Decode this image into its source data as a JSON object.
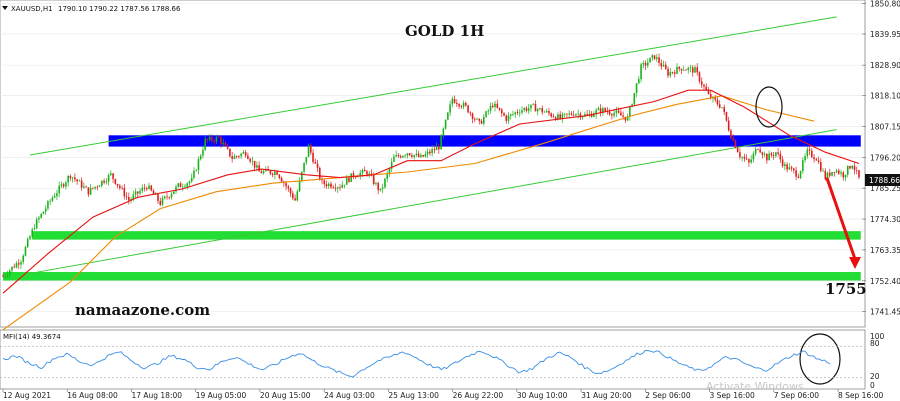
{
  "window": {
    "symbol_label": "XAUUSD,H1",
    "ohlc_label": "1790.10 1790.22 1787.56 1788.66",
    "menu_icon": "triangle-down-icon"
  },
  "annotations": {
    "title": "GOLD 1H",
    "brand": "namaazone.com",
    "target": "1755",
    "price_tag": "1788.66"
  },
  "indicator": {
    "label": "MFI(14) 49.3674",
    "levels": [
      "100",
      "80",
      "20",
      "0"
    ]
  },
  "watermark": "Activate Windows",
  "colors": {
    "up_candle": "#19b219",
    "down_candle": "#e11c1c",
    "ma_fast": "#e81010",
    "ma_slow": "#f08a00",
    "channel": "#33cc33",
    "resistance_zone": "#0000ff",
    "support_zone": "#22dd33",
    "mfi_line": "#3a8ee6",
    "arrow": "#e81010"
  },
  "chart_data": {
    "type": "candlestick",
    "title": "GOLD 1H",
    "ylim": [
      1736,
      1852
    ],
    "y_ticks": [
      "1850.80",
      "1839.95",
      "1828.90",
      "1818.10",
      "1807.15",
      "1796.20",
      "1785.25",
      "1774.30",
      "1763.35",
      "1752.40",
      "1741.45"
    ],
    "x_ticks": [
      "12 Aug 2021",
      "16 Aug 08:00",
      "17 Aug 18:00",
      "19 Aug 05:00",
      "20 Aug 15:00",
      "24 Aug 03:00",
      "25 Aug 13:00",
      "26 Aug 22:00",
      "30 Aug 10:00",
      "31 Aug 20:00",
      "2 Sep 06:00",
      "3 Sep 16:00",
      "7 Sep 06:00",
      "8 Sep 16:00"
    ],
    "close_path": [
      [
        0,
        1754
      ],
      [
        8,
        1760
      ],
      [
        14,
        1772
      ],
      [
        22,
        1782
      ],
      [
        30,
        1790
      ],
      [
        38,
        1784
      ],
      [
        48,
        1790
      ],
      [
        56,
        1781
      ],
      [
        64,
        1786
      ],
      [
        70,
        1780
      ],
      [
        78,
        1786
      ],
      [
        84,
        1788
      ],
      [
        90,
        1802
      ],
      [
        96,
        1803
      ],
      [
        102,
        1796
      ],
      [
        108,
        1798
      ],
      [
        114,
        1791
      ],
      [
        122,
        1791
      ],
      [
        130,
        1781
      ],
      [
        136,
        1800
      ],
      [
        142,
        1787
      ],
      [
        150,
        1786
      ],
      [
        156,
        1790
      ],
      [
        162,
        1791
      ],
      [
        168,
        1784
      ],
      [
        174,
        1796
      ],
      [
        180,
        1798
      ],
      [
        186,
        1796
      ],
      [
        194,
        1800
      ],
      [
        200,
        1817
      ],
      [
        206,
        1814
      ],
      [
        212,
        1808
      ],
      [
        218,
        1815
      ],
      [
        224,
        1810
      ],
      [
        230,
        1813
      ],
      [
        236,
        1814
      ],
      [
        242,
        1812
      ],
      [
        248,
        1810
      ],
      [
        254,
        1812
      ],
      [
        260,
        1811
      ],
      [
        266,
        1813
      ],
      [
        272,
        1812
      ],
      [
        278,
        1810
      ],
      [
        284,
        1828
      ],
      [
        290,
        1832
      ],
      [
        296,
        1826
      ],
      [
        302,
        1828
      ],
      [
        308,
        1827
      ],
      [
        314,
        1818
      ],
      [
        320,
        1814
      ],
      [
        324,
        1804
      ],
      [
        328,
        1797
      ],
      [
        332,
        1794
      ],
      [
        336,
        1800
      ],
      [
        340,
        1796
      ],
      [
        344,
        1798
      ],
      [
        348,
        1793
      ],
      [
        354,
        1790
      ],
      [
        358,
        1798
      ],
      [
        362,
        1796
      ],
      [
        366,
        1789
      ],
      [
        370,
        1792
      ],
      [
        374,
        1790
      ],
      [
        378,
        1794
      ],
      [
        381,
        1788.66
      ]
    ],
    "ma_fast_path": [
      [
        0,
        1748
      ],
      [
        20,
        1762
      ],
      [
        40,
        1775
      ],
      [
        60,
        1782
      ],
      [
        80,
        1785
      ],
      [
        100,
        1790
      ],
      [
        115,
        1792
      ],
      [
        135,
        1790
      ],
      [
        150,
        1789
      ],
      [
        165,
        1790
      ],
      [
        180,
        1795
      ],
      [
        195,
        1795
      ],
      [
        210,
        1801
      ],
      [
        230,
        1808
      ],
      [
        260,
        1811
      ],
      [
        290,
        1816
      ],
      [
        305,
        1820
      ],
      [
        315,
        1820
      ],
      [
        330,
        1814
      ],
      [
        350,
        1804
      ],
      [
        366,
        1798
      ],
      [
        381,
        1794
      ]
    ],
    "ma_slow_path": [
      [
        0,
        1735
      ],
      [
        30,
        1752
      ],
      [
        50,
        1768
      ],
      [
        70,
        1778
      ],
      [
        95,
        1784
      ],
      [
        120,
        1787
      ],
      [
        150,
        1789
      ],
      [
        180,
        1791
      ],
      [
        210,
        1794
      ],
      [
        240,
        1801
      ],
      [
        260,
        1806
      ],
      [
        280,
        1811
      ],
      [
        300,
        1815
      ],
      [
        320,
        1818
      ],
      [
        340,
        1813
      ],
      [
        361,
        1809
      ]
    ],
    "channel": {
      "upper": [
        [
          12,
          1797
        ],
        [
          371,
          1846
        ]
      ],
      "lower": [
        [
          12,
          1755
        ],
        [
          371,
          1806
        ]
      ]
    },
    "zones": [
      {
        "name": "resistance",
        "from": 1800,
        "to": 1804,
        "x_start": 47,
        "x_end": 380
      },
      {
        "name": "support_upper",
        "from": 1767,
        "to": 1770,
        "x_start": 13,
        "x_end": 380
      },
      {
        "name": "support_lower",
        "from": 1752.5,
        "to": 1755.5,
        "x_start": 0,
        "x_end": 380
      }
    ],
    "projection_arrow": {
      "from": [
        364,
        1789
      ],
      "to": [
        381,
        1758
      ]
    },
    "mfi": {
      "ylim": [
        0,
        100
      ],
      "values": [
        55,
        62,
        48,
        40,
        58,
        65,
        50,
        44,
        60,
        70,
        52,
        38,
        48,
        62,
        55,
        40,
        36,
        52,
        60,
        47,
        35,
        44,
        58,
        68,
        52,
        40,
        30,
        22,
        38,
        52,
        60,
        70,
        58,
        44,
        35,
        48,
        62,
        72,
        60,
        45,
        30,
        38,
        56,
        68,
        58,
        40,
        28,
        35,
        50,
        64,
        74,
        66,
        52,
        40,
        32,
        45,
        60,
        52,
        40,
        34,
        48,
        62,
        70,
        56,
        49
      ]
    }
  }
}
